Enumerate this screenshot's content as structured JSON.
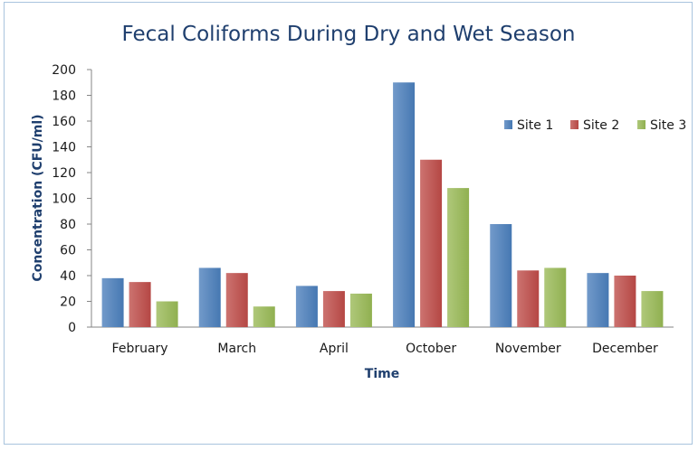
{
  "chart_data": {
    "type": "bar",
    "title": "Fecal Coliforms During Dry and Wet Season",
    "xlabel": "Time",
    "ylabel": "Concentration (CFU/ml)",
    "ylim": [
      0,
      200
    ],
    "yticks": [
      "0",
      "20",
      "40",
      "60",
      "80",
      "100",
      "120",
      "140",
      "160",
      "180",
      "200"
    ],
    "grid": false,
    "legend_position": "right",
    "categories": [
      "February",
      "March",
      "April",
      "October",
      "November",
      "December"
    ],
    "series": [
      {
        "name": "Site 1",
        "color": "#4a7ebb",
        "values": [
          38,
          46,
          32,
          190,
          80,
          42
        ]
      },
      {
        "name": "Site 2",
        "color": "#be4b48",
        "values": [
          35,
          42,
          28,
          130,
          44,
          40
        ]
      },
      {
        "name": "Site 3",
        "color": "#98b954",
        "values": [
          20,
          16,
          26,
          108,
          46,
          28
        ]
      }
    ]
  }
}
